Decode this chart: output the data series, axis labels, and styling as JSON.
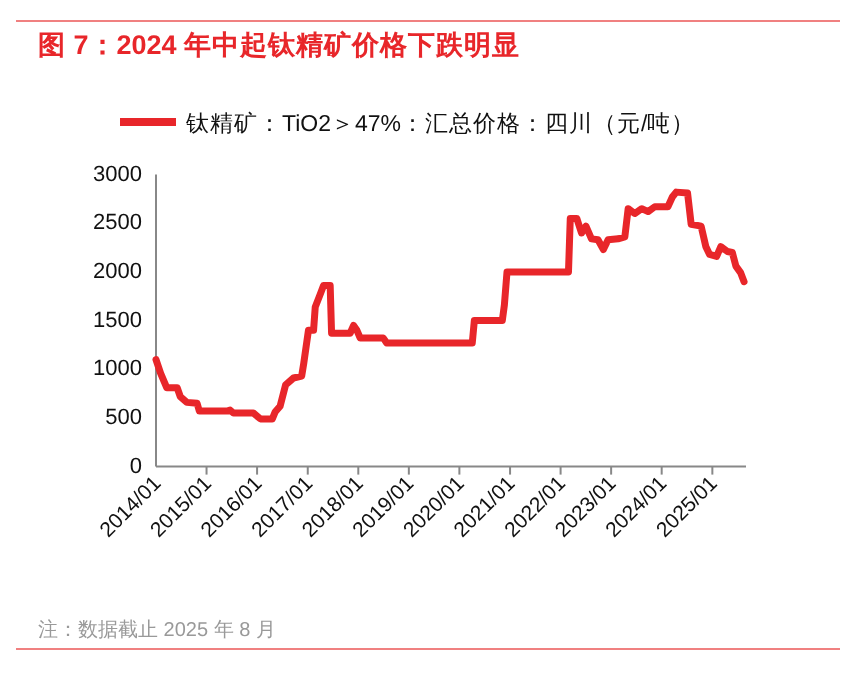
{
  "chart_data": {
    "type": "line",
    "title": "图 7：2024 年中起钛精矿价格下跌明显",
    "annotations": [
      "注：数据截止 2025 年 8 月"
    ],
    "legend": "top",
    "xlim": [
      "2014-01-01",
      "2025-09-01"
    ],
    "xticks": [
      {
        "value": "2014-01-01",
        "label": "2014/01"
      },
      {
        "value": "2015-01-01",
        "label": "2015/01"
      },
      {
        "value": "2016-01-01",
        "label": "2016/01"
      },
      {
        "value": "2017-01-01",
        "label": "2017/01"
      },
      {
        "value": "2018-01-01",
        "label": "2018/01"
      },
      {
        "value": "2019-01-01",
        "label": "2019/01"
      },
      {
        "value": "2020-01-01",
        "label": "2020/01"
      },
      {
        "value": "2021-01-01",
        "label": "2021/01"
      },
      {
        "value": "2022-01-01",
        "label": "2022/01"
      },
      {
        "value": "2023-01-01",
        "label": "2023/01"
      },
      {
        "value": "2024-01-01",
        "label": "2024/01"
      },
      {
        "value": "2025-01-01",
        "label": "2025/01"
      }
    ],
    "ylim": [
      0,
      3000
    ],
    "yticks": [
      0,
      500,
      1000,
      1500,
      2000,
      2500,
      3000
    ],
    "series": [
      {
        "name": "钛精矿：TiO2＞47%：汇总价格：四川（元/吨）",
        "color": "#e8262a",
        "x": [
          "2014-01-01",
          "2014-02-03",
          "2014-03-20",
          "2014-06-03",
          "2014-06-25",
          "2014-08-12",
          "2014-10-25",
          "2014-11-10",
          "2015-05-28",
          "2015-06-20",
          "2015-07-15",
          "2015-12-05",
          "2016-01-25",
          "2016-04-20",
          "2016-05-10",
          "2016-06-15",
          "2016-07-25",
          "2016-09-20",
          "2016-11-18",
          "2016-12-03",
          "2017-01-06",
          "2017-02-12",
          "2017-02-24",
          "2017-04-01",
          "2017-04-25",
          "2017-06-12",
          "2017-06-22",
          "2017-11-03",
          "2017-11-28",
          "2017-12-22",
          "2018-01-15",
          "2018-07-01",
          "2018-07-25",
          "2018-10-25",
          "2020-04-03",
          "2020-04-18",
          "2020-11-06",
          "2020-11-21",
          "2020-12-10",
          "2022-02-27",
          "2022-03-12",
          "2022-04-28",
          "2022-06-01",
          "2022-07-03",
          "2022-08-12",
          "2022-09-28",
          "2022-11-06",
          "2022-12-10",
          "2023-02-20",
          "2023-04-10",
          "2023-05-04",
          "2023-06-20",
          "2023-08-10",
          "2023-09-25",
          "2023-11-12",
          "2024-02-15",
          "2024-03-18",
          "2024-04-15",
          "2024-07-06",
          "2024-08-01",
          "2024-10-12",
          "2024-11-15",
          "2024-12-12",
          "2025-02-01",
          "2025-03-03",
          "2025-04-20",
          "2025-05-25",
          "2025-06-20",
          "2025-07-25",
          "2025-08-18"
        ],
        "values": [
          1100,
          960,
          810,
          810,
          720,
          660,
          650,
          570,
          570,
          580,
          550,
          550,
          490,
          490,
          560,
          620,
          840,
          910,
          930,
          1060,
          1400,
          1400,
          1640,
          1770,
          1860,
          1860,
          1370,
          1370,
          1450,
          1400,
          1320,
          1320,
          1270,
          1270,
          1270,
          1500,
          1500,
          1660,
          2000,
          2000,
          2550,
          2550,
          2400,
          2470,
          2340,
          2330,
          2230,
          2330,
          2340,
          2360,
          2650,
          2600,
          2650,
          2620,
          2670,
          2670,
          2770,
          2820,
          2810,
          2490,
          2470,
          2260,
          2180,
          2160,
          2260,
          2210,
          2200,
          2060,
          1990,
          1900
        ]
      }
    ]
  }
}
